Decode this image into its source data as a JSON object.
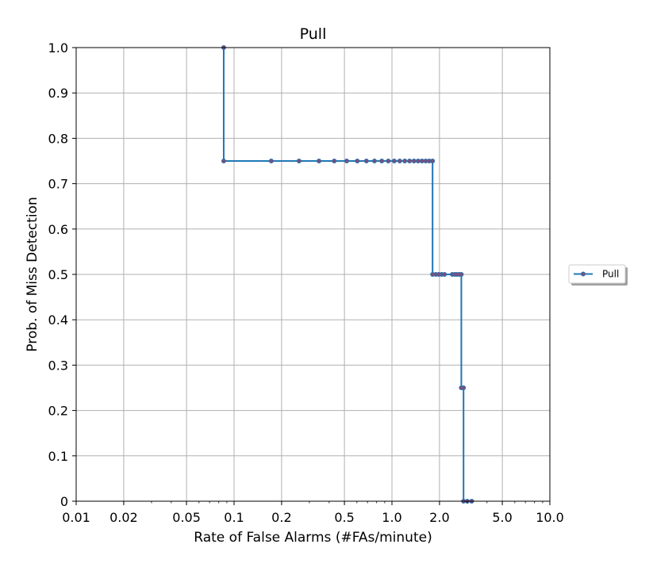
{
  "chart_data": {
    "type": "line",
    "title": "Pull",
    "xlabel": "Rate of False Alarms (#FAs/minute)",
    "ylabel": "Prob. of Miss Detection",
    "x_scale": "log",
    "xlim": [
      0.01,
      10.0
    ],
    "ylim": [
      0,
      1.0
    ],
    "x_ticks": [
      0.01,
      0.02,
      0.05,
      0.1,
      0.2,
      0.5,
      1.0,
      2.0,
      5.0,
      10.0
    ],
    "x_tick_labels": [
      "0.01",
      "0.02",
      "0.05",
      "0.1",
      "0.2",
      "0.5",
      "1.0",
      "2.0",
      "5.0",
      "10.0"
    ],
    "y_ticks": [
      0,
      0.1,
      0.2,
      0.3,
      0.4,
      0.5,
      0.6,
      0.7,
      0.8,
      0.9,
      1.0
    ],
    "y_tick_labels": [
      "0",
      "0.1",
      "0.2",
      "0.3",
      "0.4",
      "0.5",
      "0.6",
      "0.7",
      "0.8",
      "0.9",
      "1.0"
    ],
    "grid": true,
    "legend_position": "right, outside plot",
    "series": [
      {
        "name": "Pull",
        "color": "#1f77b4",
        "marker_color": "#7b4f7f",
        "step": true,
        "x": [
          0.086,
          0.086,
          0.172,
          0.258,
          0.345,
          0.431,
          0.517,
          0.603,
          0.689,
          0.775,
          0.862,
          0.948,
          1.034,
          1.12,
          1.206,
          1.292,
          1.378,
          1.464,
          1.55,
          1.636,
          1.722,
          1.808,
          1.808,
          1.894,
          1.98,
          2.066,
          2.152,
          2.41,
          2.5,
          2.58,
          2.67,
          2.75,
          2.75,
          2.84,
          2.84,
          3.0,
          3.2
        ],
        "y": [
          1.0,
          0.75,
          0.75,
          0.75,
          0.75,
          0.75,
          0.75,
          0.75,
          0.75,
          0.75,
          0.75,
          0.75,
          0.75,
          0.75,
          0.75,
          0.75,
          0.75,
          0.75,
          0.75,
          0.75,
          0.75,
          0.75,
          0.5,
          0.5,
          0.5,
          0.5,
          0.5,
          0.5,
          0.5,
          0.5,
          0.5,
          0.5,
          0.25,
          0.25,
          0.0,
          0.0,
          0.0
        ]
      }
    ]
  }
}
